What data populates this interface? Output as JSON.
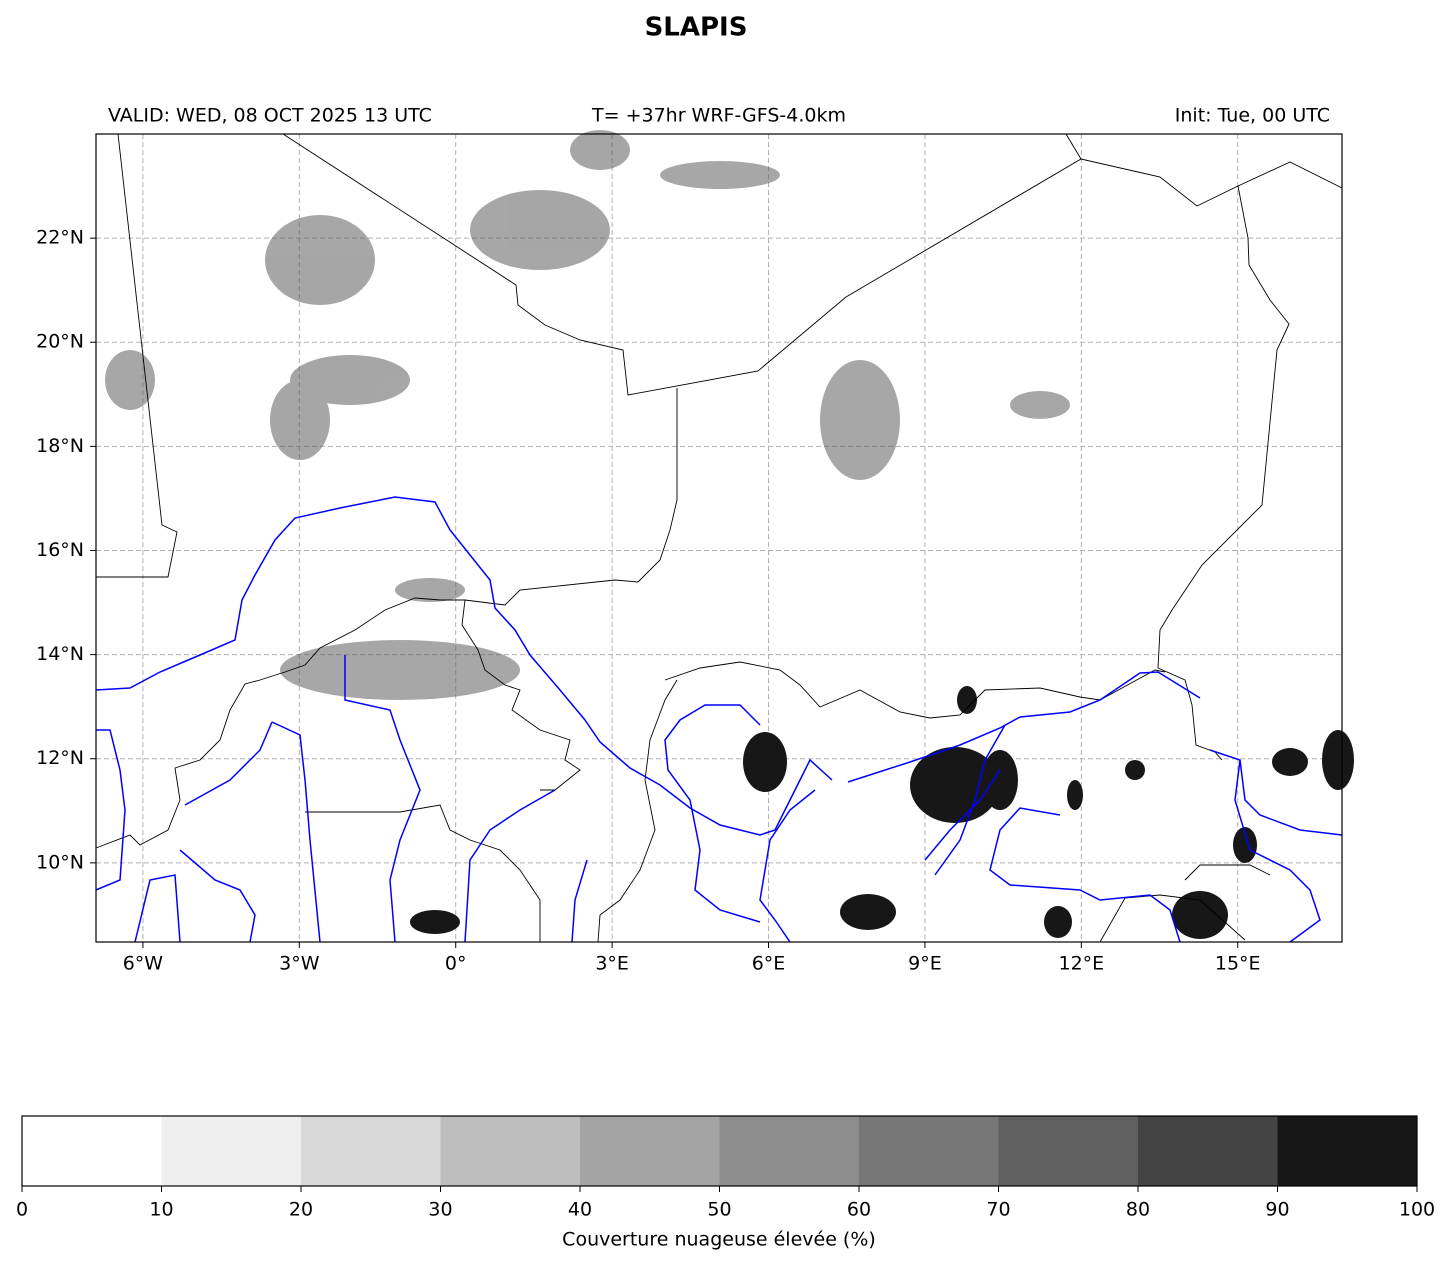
{
  "title": "SLAPIS",
  "header": {
    "valid": "VALID: WED, 08 OCT 2025 13 UTC",
    "run": "T= +37hr WRF-GFS-4.0km",
    "init": "Init: Tue, 00 UTC"
  },
  "map": {
    "xlim": [
      -6.9,
      17
    ],
    "ylim": [
      8.48,
      24
    ],
    "xticks": [
      {
        "value": -6,
        "label": "6°W"
      },
      {
        "value": -3,
        "label": "3°W"
      },
      {
        "value": 0,
        "label": "0°"
      },
      {
        "value": 3,
        "label": "3°E"
      },
      {
        "value": 6,
        "label": "6°E"
      },
      {
        "value": 9,
        "label": "9°E"
      },
      {
        "value": 12,
        "label": "12°E"
      },
      {
        "value": 15,
        "label": "15°E"
      }
    ],
    "yticks": [
      {
        "value": 10,
        "label": "10°N"
      },
      {
        "value": 12,
        "label": "12°N"
      },
      {
        "value": 14,
        "label": "14°N"
      },
      {
        "value": 16,
        "label": "16°N"
      },
      {
        "value": 18,
        "label": "18°N"
      },
      {
        "value": 20,
        "label": "20°N"
      },
      {
        "value": 22,
        "label": "22°N"
      }
    ],
    "grid": true
  },
  "colorbar": {
    "label": "Couverture nuageuse élevée (%)",
    "ticks": [
      0,
      10,
      20,
      30,
      40,
      50,
      60,
      70,
      80,
      90,
      100
    ],
    "colors": [
      "#ffffff",
      "#efefef",
      "#d9d9d9",
      "#bdbdbd",
      "#a4a4a4",
      "#8c8c8c",
      "#777777",
      "#5f5f5f",
      "#444444",
      "#171717"
    ]
  }
}
